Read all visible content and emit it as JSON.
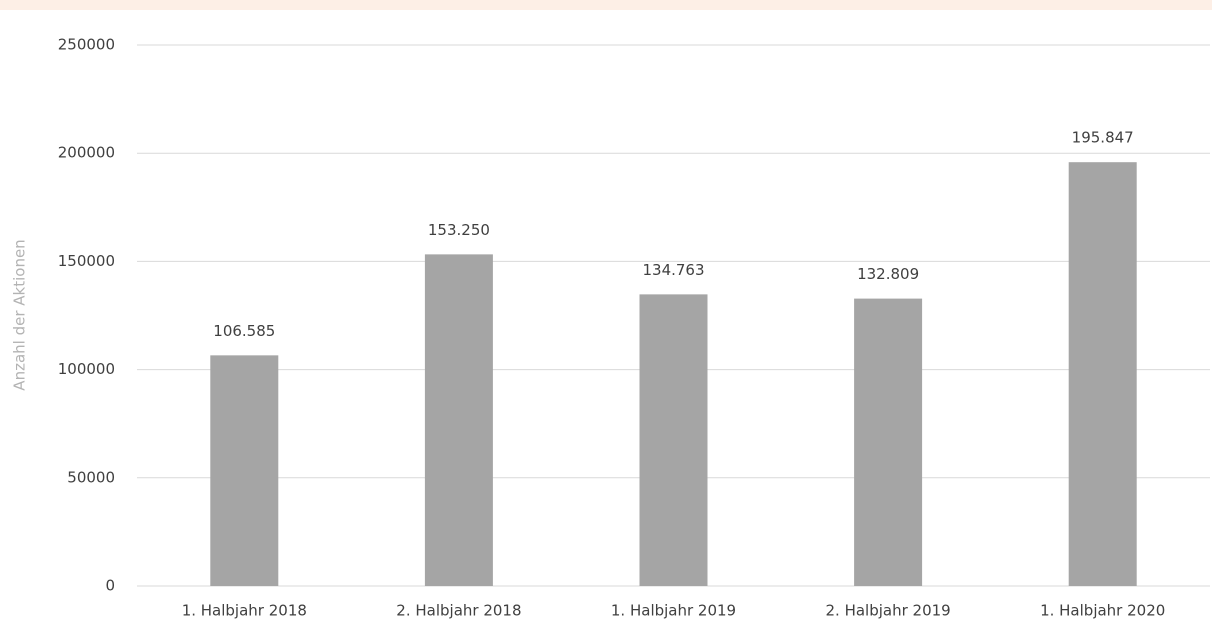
{
  "chart_data": {
    "type": "bar",
    "y_label": "Anzahl der Aktionen",
    "categories": [
      "1. Halbjahr 2018",
      "2. Halbjahr 2018",
      "1. Halbjahr 2019",
      "2. Halbjahr 2019",
      "1. Halbjahr 2020"
    ],
    "values": [
      106585,
      153250,
      134763,
      132809,
      195847
    ],
    "value_labels": [
      "106.585",
      "153.250",
      "134.763",
      "132.809",
      "195.847"
    ],
    "color": "#a5a5a5",
    "ylim": [
      0,
      250000
    ],
    "yticks": [
      0,
      50000,
      100000,
      150000,
      200000,
      250000
    ],
    "grid": true
  }
}
